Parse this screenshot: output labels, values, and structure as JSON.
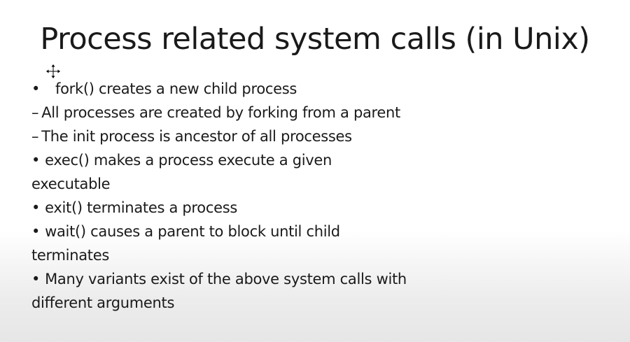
{
  "slide": {
    "title": "Process related system calls (in Unix)",
    "lines": [
      {
        "marker": "•",
        "text": "fork() creates a new child process"
      },
      {
        "marker": "–",
        "text": "All processes are created by forking from a parent"
      },
      {
        "marker": "–",
        "text": "The init process is ancestor of all processes"
      },
      {
        "marker": "•",
        "text": "exec() makes a process execute a given"
      },
      {
        "marker": "",
        "text": "executable"
      },
      {
        "marker": "•",
        "text": "exit() terminates a process"
      },
      {
        "marker": "•",
        "text": "wait() causes a parent to block until child"
      },
      {
        "marker": "",
        "text": "terminates"
      },
      {
        "marker": "•",
        "text": "Many variants exist of the above system calls with"
      },
      {
        "marker": "",
        "text": "different arguments"
      }
    ]
  },
  "cursor_icon": "move-cursor-icon"
}
